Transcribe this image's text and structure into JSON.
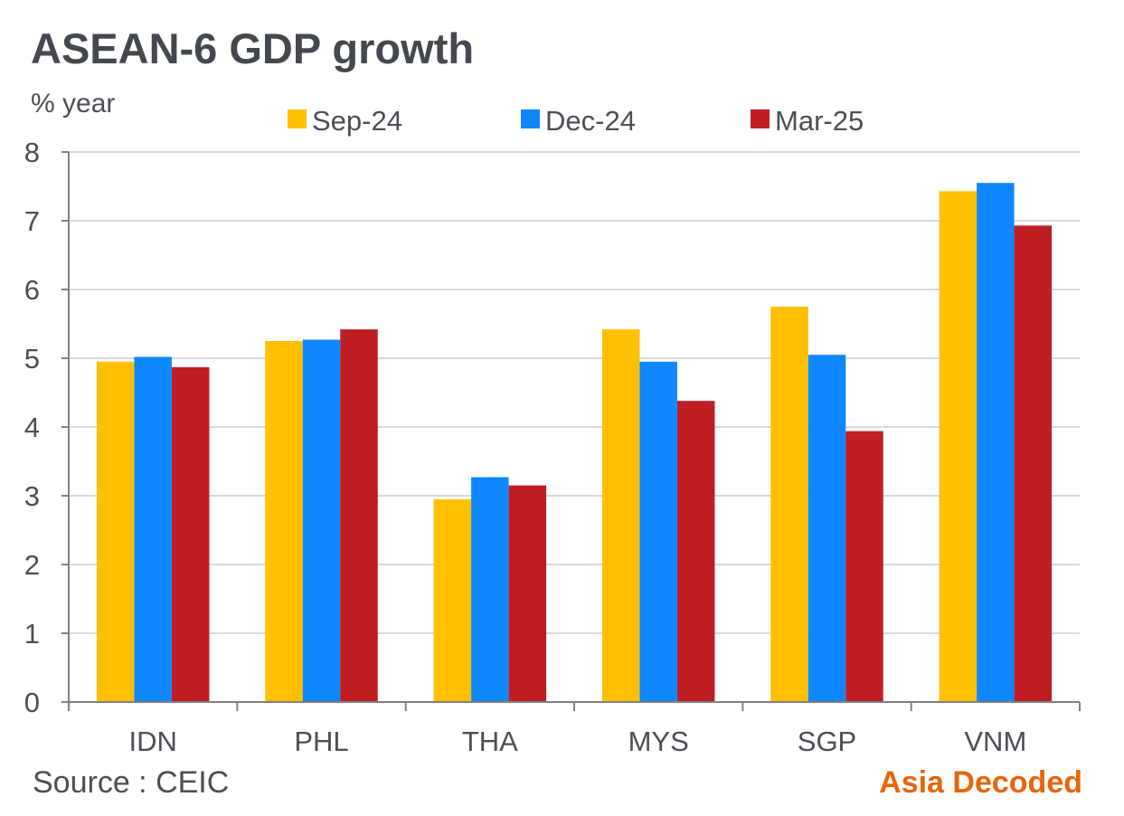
{
  "chart_data": {
    "type": "bar",
    "title": "ASEAN-6 GDP growth",
    "ylabel": "% year",
    "xlabel": "",
    "ylim": [
      0,
      8
    ],
    "yticks": [
      "0",
      "1",
      "2",
      "3",
      "4",
      "5",
      "6",
      "7",
      "8"
    ],
    "categories": [
      "IDN",
      "PHL",
      "THA",
      "MYS",
      "SGP",
      "VNM"
    ],
    "legend_position": "top",
    "grid": true,
    "series": [
      {
        "name": "Sep-24",
        "color": "#ffc000",
        "values": [
          4.95,
          5.25,
          2.95,
          5.42,
          5.75,
          7.43
        ]
      },
      {
        "name": "Dec-24",
        "color": "#0f88ff",
        "values": [
          5.02,
          5.27,
          3.27,
          4.95,
          5.05,
          7.55
        ]
      },
      {
        "name": "Mar-25",
        "color": "#be1e24",
        "values": [
          4.87,
          5.42,
          3.15,
          4.38,
          3.94,
          6.93
        ]
      }
    ]
  },
  "footer": {
    "source": "Source : CEIC",
    "brand": "Asia Decoded",
    "brand_color": "#e8650a"
  }
}
